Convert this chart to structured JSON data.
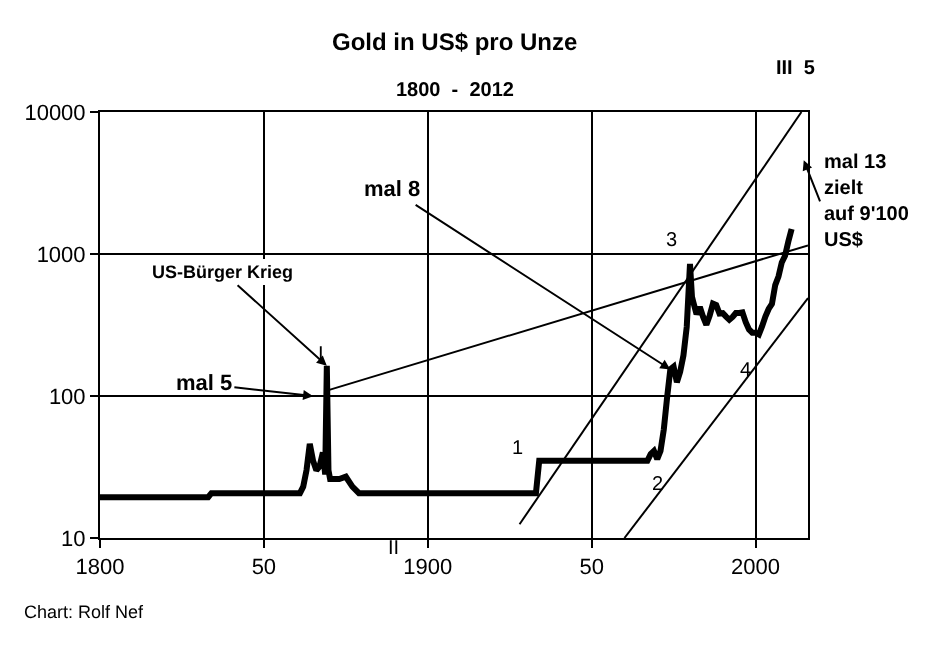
{
  "chart_data": {
    "type": "line",
    "title": "Gold in US$ pro Unze",
    "subtitle": "1800  -  2012",
    "series": [
      {
        "color": "#000000",
        "x": [
          1800,
          1833,
          1834,
          1861,
          1862,
          1863,
          1864,
          1865,
          1866,
          1867,
          1868,
          1868.7,
          1869.2,
          1869.7,
          1870.2,
          1871,
          1873,
          1875,
          1877,
          1879,
          1933,
          1934,
          1967,
          1968,
          1969,
          1970,
          1971,
          1972,
          1973,
          1974,
          1975,
          1976,
          1977,
          1978,
          1979,
          1980,
          1980.6,
          1981,
          1982,
          1983,
          1984,
          1985,
          1986,
          1987,
          1988,
          1989,
          1990,
          1991,
          1992,
          1993,
          1994,
          1995,
          1996,
          1997,
          1998,
          1999,
          2000,
          2001,
          2002,
          2003,
          2004,
          2005,
          2006,
          2007,
          2008,
          2009,
          2010,
          2011
        ],
        "values": [
          19.4,
          19.4,
          20.7,
          20.7,
          23,
          30,
          46,
          35,
          30,
          32,
          40,
          28,
          163,
          30,
          26,
          26,
          26,
          27,
          23,
          20.7,
          20.7,
          35,
          35,
          39,
          41,
          36,
          41,
          58,
          97,
          154,
          161,
          125,
          148,
          193,
          306,
          850,
          500,
          460,
          376,
          424,
          361,
          317,
          368,
          447,
          437,
          381,
          383,
          362,
          344,
          360,
          384,
          384,
          388,
          331,
          294,
          279,
          279,
          271,
          310,
          363,
          410,
          445,
          604,
          695,
          872,
          972,
          1225,
          1500
        ]
      },
      {
        "color": "#000000",
        "x": [
          1869.7,
          2016
        ],
        "values": [
          110,
          1150
        ]
      },
      {
        "color": "#000000",
        "x": [
          1928,
          2014
        ],
        "values": [
          12.5,
          10000
        ]
      },
      {
        "color": "#000000",
        "x": [
          1960,
          2016
        ],
        "values": [
          10,
          490
        ]
      }
    ],
    "xlim": [
      1800,
      2016
    ],
    "xticks": [
      1800,
      {
        "value": 1850,
        "label": "50"
      },
      1900,
      {
        "value": 1950,
        "label": "50"
      },
      2000
    ],
    "ylim": [
      10,
      10000
    ],
    "yticks": [
      10,
      100,
      1000,
      10000
    ],
    "log": "y",
    "grid": true,
    "annotations": [
      "mal 5",
      {
        "text": "US-Bürger Krieg",
        "x": 1869.2,
        "y": 163
      },
      {
        "text": "mal 8",
        "x": 1974,
        "y": 154
      },
      "mal 13\nzielt\nauf 9'100\nUS$",
      "I",
      "II",
      "1",
      "2",
      "3",
      "4",
      "III  5",
      "Chart: Rolf Nef"
    ]
  }
}
